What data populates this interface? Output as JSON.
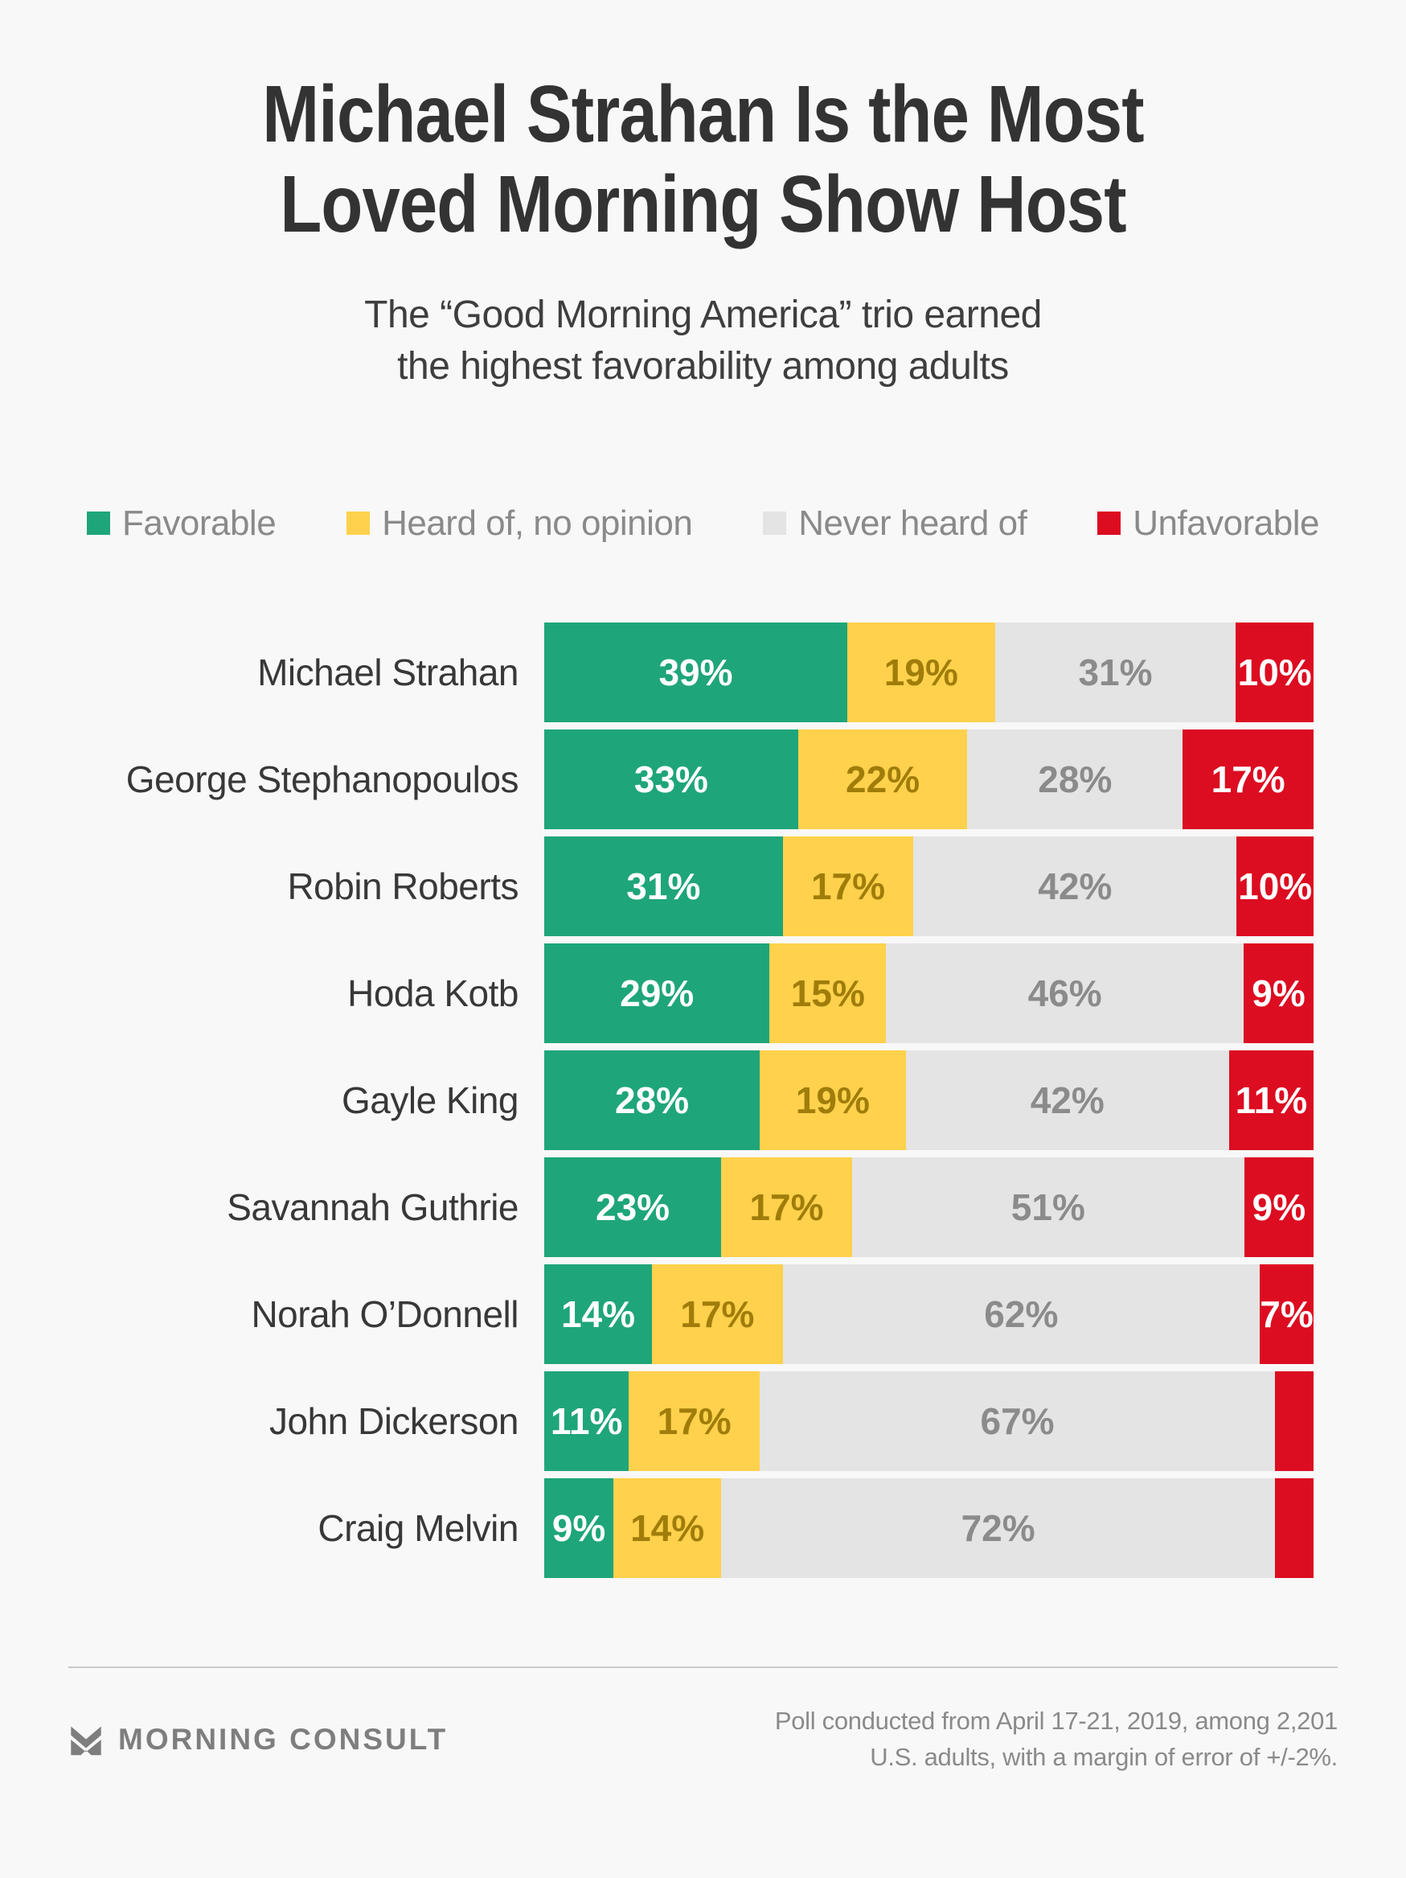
{
  "header": {
    "title_lines": [
      "Michael Strahan Is the Most",
      "Loved Morning Show Host"
    ],
    "subtitle_lines": [
      "The “Good Morning America” trio earned",
      "the highest favorability among adults"
    ]
  },
  "chart_data": {
    "type": "bar",
    "variant": "horizontal-stacked-100pct",
    "title": "Michael Strahan Is the Most Loved Morning Show Host",
    "subtitle": "The “Good Morning America” trio earned the highest favorability among adults",
    "legend_position": "top",
    "grid": false,
    "value_suffix": "%",
    "min_value_for_label": 6,
    "categories": [
      "Michael Strahan",
      "George Stephanopoulos",
      "Robin Roberts",
      "Hoda Kotb",
      "Gayle King",
      "Savannah Guthrie",
      "Norah O’Donnell",
      "John Dickerson",
      "Craig Melvin"
    ],
    "series": [
      {
        "name": "Favorable",
        "color": "#1FA57A",
        "label_color": "#FFFFFF",
        "values": [
          39,
          33,
          31,
          29,
          28,
          23,
          14,
          11,
          9
        ]
      },
      {
        "name": "Heard of, no opinion",
        "color": "#FFD14C",
        "label_color": "#A07D0A",
        "values": [
          19,
          22,
          17,
          15,
          19,
          17,
          17,
          17,
          14
        ]
      },
      {
        "name": "Never heard of",
        "color": "#E4E4E4",
        "label_color": "#8B8B8B",
        "values": [
          31,
          28,
          42,
          46,
          42,
          51,
          62,
          67,
          72
        ]
      },
      {
        "name": "Unfavorable",
        "color": "#DC0C21",
        "label_color": "#FFFFFF",
        "values": [
          10,
          17,
          10,
          9,
          11,
          9,
          7,
          5,
          5
        ]
      }
    ]
  },
  "footer": {
    "brand": "MORNING CONSULT",
    "logo_icon": "morning-consult-chevron-m-logo",
    "source_lines": [
      "Poll conducted from April 17-21, 2019, among 2,201",
      "U.S. adults, with a margin of error of +/-2%."
    ]
  },
  "colors": {
    "background": "#F8F8F8",
    "title_text": "#333333",
    "subtitle_text": "#3E3E3E",
    "legend_text": "#8A8A8A",
    "category_label_text": "#383838",
    "favorable": "#1FA57A",
    "heard_of_no_opinion": "#FFD14C",
    "never_heard_of": "#E4E4E4",
    "unfavorable": "#DC0C21",
    "divider": "#C9C9C9",
    "footer_text": "#8A8A8A",
    "brand_text": "#7E7E7E"
  }
}
